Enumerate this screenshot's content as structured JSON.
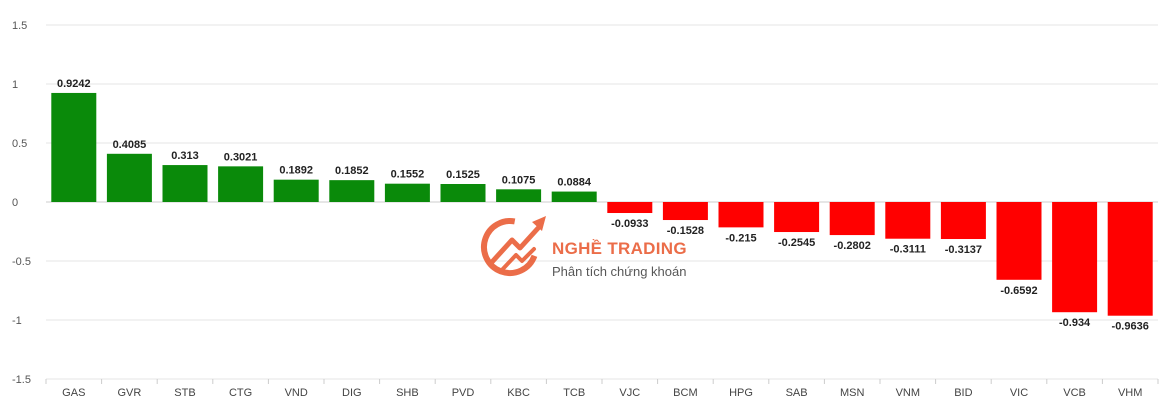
{
  "chart_data": {
    "type": "bar",
    "categories": [
      "GAS",
      "GVR",
      "STB",
      "CTG",
      "VND",
      "DIG",
      "SHB",
      "PVD",
      "KBC",
      "TCB",
      "VJC",
      "BCM",
      "HPG",
      "SAB",
      "MSN",
      "VNM",
      "BID",
      "VIC",
      "VCB",
      "VHM"
    ],
    "values": [
      0.9242,
      0.4085,
      0.313,
      0.3021,
      0.1892,
      0.1852,
      0.1552,
      0.1525,
      0.1075,
      0.0884,
      -0.0933,
      -0.1528,
      -0.215,
      -0.2545,
      -0.2802,
      -0.3111,
      -0.3137,
      -0.6592,
      -0.934,
      -0.9636
    ],
    "data_labels": [
      "0.9242",
      "0.4085",
      "0.313",
      "0.3021",
      "0.1892",
      "0.1852",
      "0.1552",
      "0.1525",
      "0.1075",
      "0.0884",
      "-0.0933",
      "-0.1528",
      "-0.215",
      "-0.2545",
      "-0.2802",
      "-0.3111",
      "-0.3137",
      "-0.6592",
      "-0.934",
      "-0.9636"
    ],
    "yticks": [
      1.5,
      1,
      0.5,
      0,
      -0.5,
      -1,
      -1.5
    ],
    "ytick_labels": [
      "1.5",
      "1",
      "0.5",
      "0",
      "-0.5",
      "-1",
      "-1.5"
    ],
    "ylim": [
      -1.5,
      1.5
    ],
    "title": "",
    "xlabel": "",
    "ylabel": "",
    "grid": true,
    "legend": "none",
    "colors": {
      "positive": "#0a8a0a",
      "negative": "#ff0000",
      "grid": "#e6e6e6",
      "axis": "#cccccc"
    }
  },
  "watermark": {
    "title": "NGHỀ TRADING",
    "subtitle": "Phân tích chứng khoán",
    "color": "#e8542a"
  }
}
